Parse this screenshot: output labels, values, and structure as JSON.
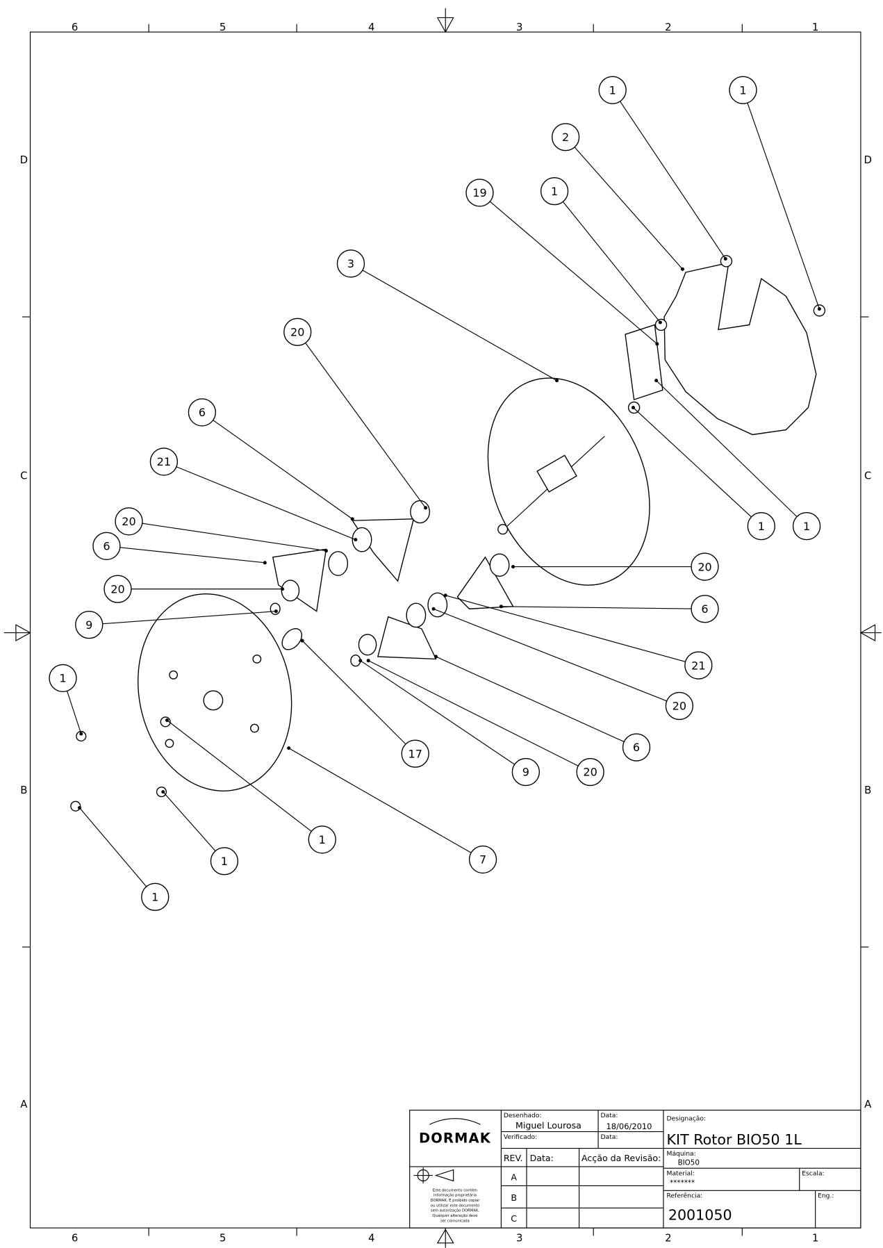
{
  "zones": {
    "columns": [
      "6",
      "5",
      "4",
      "3",
      "2",
      "1"
    ],
    "rows": [
      "D",
      "C",
      "B",
      "A"
    ]
  },
  "balloons": [
    "1",
    "1",
    "2",
    "19",
    "1",
    "3",
    "20",
    "6",
    "21",
    "20",
    "6",
    "20",
    "9",
    "1",
    "1",
    "1",
    "20",
    "6",
    "21",
    "20",
    "6",
    "20",
    "9",
    "17",
    "1",
    "7",
    "1",
    "1"
  ],
  "title_block": {
    "company": "DORMAK",
    "drawn_by_label": "Desenhado:",
    "drawn_by": "Miguel Lourosa",
    "date_label": "Data:",
    "date": "18/06/2010",
    "checked_label": "Verificado:",
    "checked_date_label": "Data:",
    "rev_label": "REV.",
    "rev_date_label": "Data:",
    "rev_action_label": "Acção da Revisão:",
    "revisions": [
      "A",
      "B",
      "C"
    ],
    "notice_lines": [
      "Este documento contém",
      "informação proprietária",
      "DORMAK. É proibido copiar",
      "ou utilizar este documento",
      "sem autorização DORMAK.",
      "Qualquer alteração deve",
      "ser comunicada"
    ],
    "designation_label": "Designação:",
    "designation": "KIT Rotor BIO50 1L",
    "machine_label": "Máquina:",
    "machine": "BIO50",
    "material_label": "Material:",
    "material": "*******",
    "scale_label": "Escala:",
    "reference_label": "Referência:",
    "reference": "2001050",
    "eng_label": "Eng.:"
  }
}
